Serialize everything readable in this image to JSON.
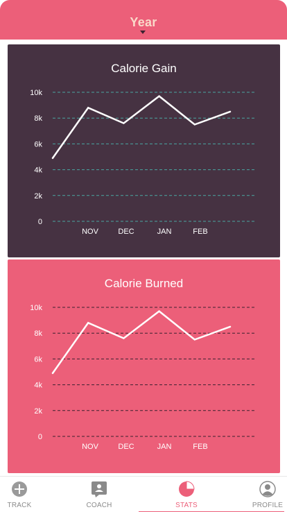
{
  "header": {
    "title": "Year"
  },
  "colors": {
    "accent": "#ec5f79",
    "dark_card": "#463242",
    "line": "#ffffff",
    "gain_grid": "#4aa7a2",
    "burned_grid": "#3b2230"
  },
  "charts": [
    {
      "id": "gain",
      "chart_data": {
        "type": "line",
        "title": "Calorie Gain",
        "categories": [
          "NOV",
          "DEC",
          "JAN",
          "FEB"
        ],
        "yticks": [
          "10k",
          "8k",
          "6k",
          "4k",
          "2k",
          "0"
        ],
        "ylim": [
          0,
          10000
        ],
        "grid": true,
        "series": [
          {
            "x": [
              0,
              1,
              2,
              3,
              4,
              5,
              6
            ],
            "values": [
              4900,
              8800,
              7600,
              9700,
              7500,
              8500,
              8500
            ]
          }
        ]
      }
    },
    {
      "id": "burned",
      "chart_data": {
        "type": "line",
        "title": "Calorie Burned",
        "categories": [
          "NOV",
          "DEC",
          "JAN",
          "FEB"
        ],
        "yticks": [
          "10k",
          "8k",
          "6k",
          "4k",
          "2k",
          "0"
        ],
        "ylim": [
          0,
          10000
        ],
        "grid": true,
        "series": [
          {
            "x": [
              0,
              1,
              2,
              3,
              4,
              5,
              6
            ],
            "values": [
              4900,
              8800,
              7600,
              9700,
              7500,
              8500,
              8500
            ]
          }
        ]
      }
    }
  ],
  "tabbar": {
    "items": [
      {
        "label": "TRACK",
        "icon": "plus-circle-icon",
        "active": false
      },
      {
        "label": "COACH",
        "icon": "chat-icon",
        "active": false
      },
      {
        "label": "STATS",
        "icon": "pie-chart-icon",
        "active": true
      },
      {
        "label": "PROFILE",
        "icon": "user-icon",
        "active": false
      }
    ]
  }
}
